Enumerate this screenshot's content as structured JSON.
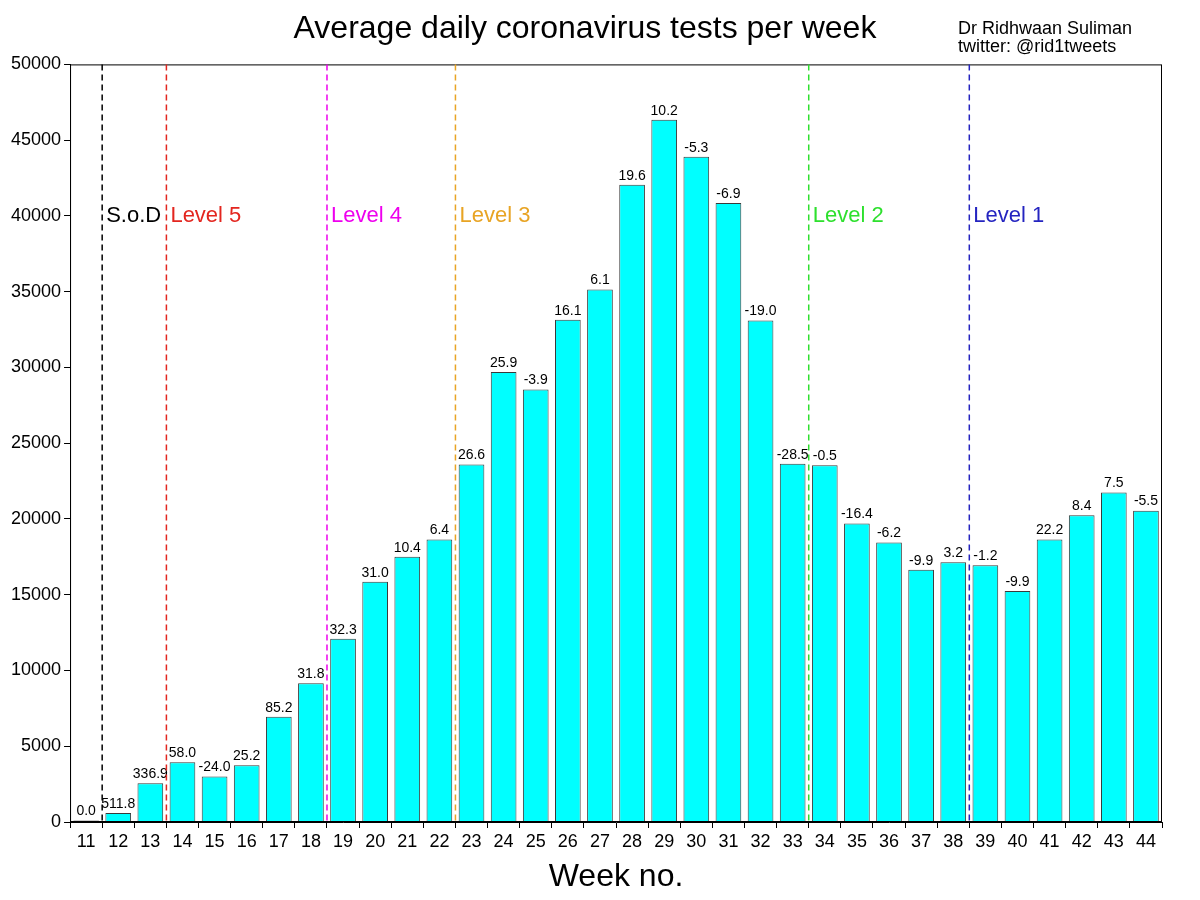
{
  "chart_data": {
    "type": "bar",
    "title": "Average daily coronavirus tests per week",
    "credit": [
      "Dr Ridhwaan Suliman",
      "twitter: @rid1tweets"
    ],
    "x_label": "Week no.",
    "categories": [
      11,
      12,
      13,
      14,
      15,
      16,
      17,
      18,
      19,
      20,
      21,
      22,
      23,
      24,
      25,
      26,
      27,
      28,
      29,
      30,
      31,
      32,
      33,
      34,
      35,
      36,
      37,
      38,
      39,
      40,
      41,
      42,
      43,
      44
    ],
    "values": [
      100,
      600,
      2550,
      3950,
      3000,
      3750,
      6950,
      9150,
      12100,
      15850,
      17500,
      18650,
      23600,
      29700,
      28550,
      33150,
      35150,
      42050,
      46350,
      43900,
      40850,
      33100,
      23650,
      23550,
      19700,
      18450,
      16650,
      17150,
      16950,
      15250,
      18650,
      20250,
      21750,
      20550
    ],
    "percent_change": [
      0.0,
      511.8,
      336.9,
      58.0,
      -24.0,
      25.2,
      85.2,
      31.8,
      32.3,
      31.0,
      10.4,
      6.4,
      26.6,
      25.9,
      -3.9,
      16.1,
      6.1,
      19.6,
      10.2,
      -5.3,
      -6.9,
      -19.0,
      -28.5,
      -0.5,
      -16.4,
      -6.2,
      -9.9,
      3.2,
      -1.2,
      -9.9,
      22.2,
      8.4,
      7.5,
      -5.5
    ],
    "color": "#00ffff",
    "ylim": [
      0,
      50000
    ],
    "yticks": [
      0,
      5000,
      10000,
      15000,
      20000,
      25000,
      30000,
      35000,
      40000,
      45000,
      50000
    ],
    "grid": false,
    "annotations": [
      {
        "label": "S.o.D",
        "x": 11.5,
        "color": "#000000"
      },
      {
        "label": "Level 5",
        "x": 13.5,
        "color": "#e3261f"
      },
      {
        "label": "Level 4",
        "x": 18.5,
        "color": "#ee00ee"
      },
      {
        "label": "Level 3",
        "x": 22.5,
        "color": "#e8a424"
      },
      {
        "label": "Level 2",
        "x": 33.5,
        "color": "#2ee02e"
      },
      {
        "label": "Level 1",
        "x": 38.5,
        "color": "#2424c0"
      }
    ]
  }
}
